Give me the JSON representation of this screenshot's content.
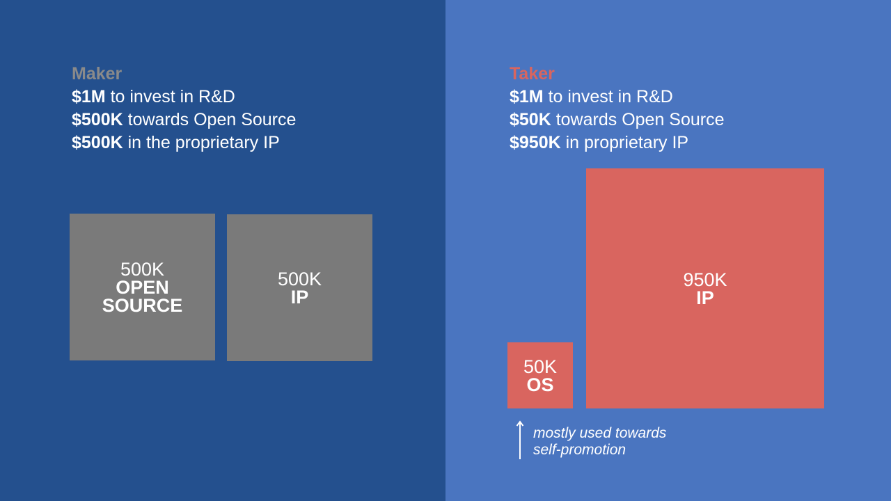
{
  "maker": {
    "heading": "Maker",
    "lines": [
      {
        "bold": "$1M",
        "rest": " to invest in R&D"
      },
      {
        "bold": "$500K",
        "rest": " towards Open Source"
      },
      {
        "bold": "$500K",
        "rest": " in the proprietary IP"
      }
    ],
    "boxes": [
      {
        "amount": "500K",
        "kind_line1": "OPEN",
        "kind_line2": "SOURCE"
      },
      {
        "amount": "500K",
        "kind": "IP"
      }
    ]
  },
  "taker": {
    "heading": "Taker",
    "lines": [
      {
        "bold": "$1M",
        "rest": " to invest in R&D"
      },
      {
        "bold": "$50K",
        "rest": " towards Open Source"
      },
      {
        "bold": "$950K",
        "rest": " in proprietary IP"
      }
    ],
    "boxes": [
      {
        "amount": "50K",
        "kind": "OS"
      },
      {
        "amount": "950K",
        "kind": "IP"
      }
    ],
    "note_line1": "mostly used towards",
    "note_line2": "self-promotion"
  },
  "colors": {
    "maker_bg": "#24508e",
    "taker_bg": "#4a75c0",
    "maker_accent": "#7a7a7a",
    "taker_accent": "#d9655f",
    "text": "#ffffff"
  }
}
